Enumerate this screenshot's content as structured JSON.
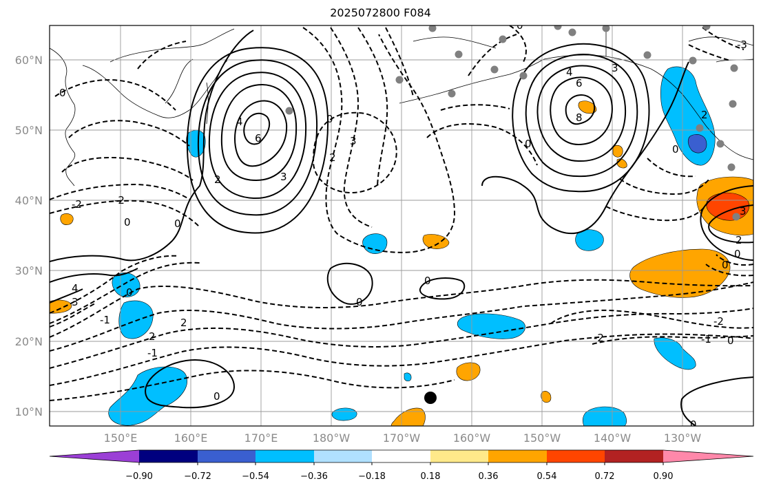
{
  "title": "2025072800 F084",
  "lat_labels": [
    "60°N",
    "50°N",
    "40°N",
    "30°N",
    "20°N",
    "10°N"
  ],
  "lon_labels": [
    "150°E",
    "160°E",
    "170°E",
    "180°W",
    "170°W",
    "160°W",
    "150°W",
    "140°W",
    "130°W"
  ],
  "colorbar": {
    "colors": [
      "#9b3fd6",
      "#00007f",
      "#3a5fd0",
      "#00bfff",
      "#b0e0ff",
      "#ffffff",
      "#ffe98a",
      "#ffa500",
      "#ff4500",
      "#b22222",
      "#ff88aa"
    ],
    "tick_labels": [
      "−0.90",
      "−0.72",
      "−0.54",
      "−0.36",
      "−0.18",
      "0.18",
      "0.36",
      "0.54",
      "0.72",
      "0.90"
    ]
  },
  "contour_labels": [
    "0",
    "2",
    "3",
    "4",
    "6",
    "8",
    "-2",
    "-1",
    "-3"
  ]
}
